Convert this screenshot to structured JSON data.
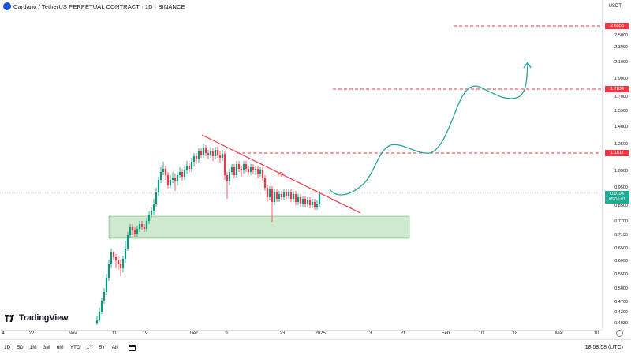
{
  "header": {
    "title": "Cardano / TetherUS PERPETUAL CONTRACT · 1D · BINANCE"
  },
  "price_axis": {
    "unit": "USDT",
    "labels": [
      "2.5000",
      "2.3000",
      "2.1000",
      "1.9000",
      "1.7000",
      "1.5500",
      "1.4000",
      "1.2500",
      "1.0500",
      "0.9500",
      "0.8500",
      "0.7700",
      "0.7100",
      "0.6500",
      "0.6000",
      "0.5500",
      "0.5000",
      "0.4700",
      "0.4300",
      "0.4030"
    ],
    "badges": [
      {
        "text": "2.6558",
        "color": "#f23645"
      },
      {
        "text": "1.7834",
        "color": "#f23645"
      },
      {
        "text": "1.1817",
        "color": "#f23645"
      },
      {
        "text": "0.9194",
        "sub": "05:01:01",
        "color": "#22ab94"
      }
    ]
  },
  "time_axis": {
    "labels": [
      "4",
      "22",
      "Nov",
      "11",
      "19",
      "Dec",
      "9",
      "23",
      "2025",
      "13",
      "21",
      "Feb",
      "10",
      "18",
      "Mar",
      "10"
    ]
  },
  "toolbar": {
    "ranges": [
      "1D",
      "5D",
      "1M",
      "3M",
      "6M",
      "YTD",
      "1Y",
      "5Y",
      "All"
    ],
    "clock": "18:58:58 (UTC)"
  },
  "watermark": {
    "text": "TradingView"
  },
  "annotations": {
    "trendline_label": "R"
  },
  "colors": {
    "up": "#089981",
    "down": "#f23645",
    "projection": "#26a69a",
    "zone": "#4caf50"
  }
}
